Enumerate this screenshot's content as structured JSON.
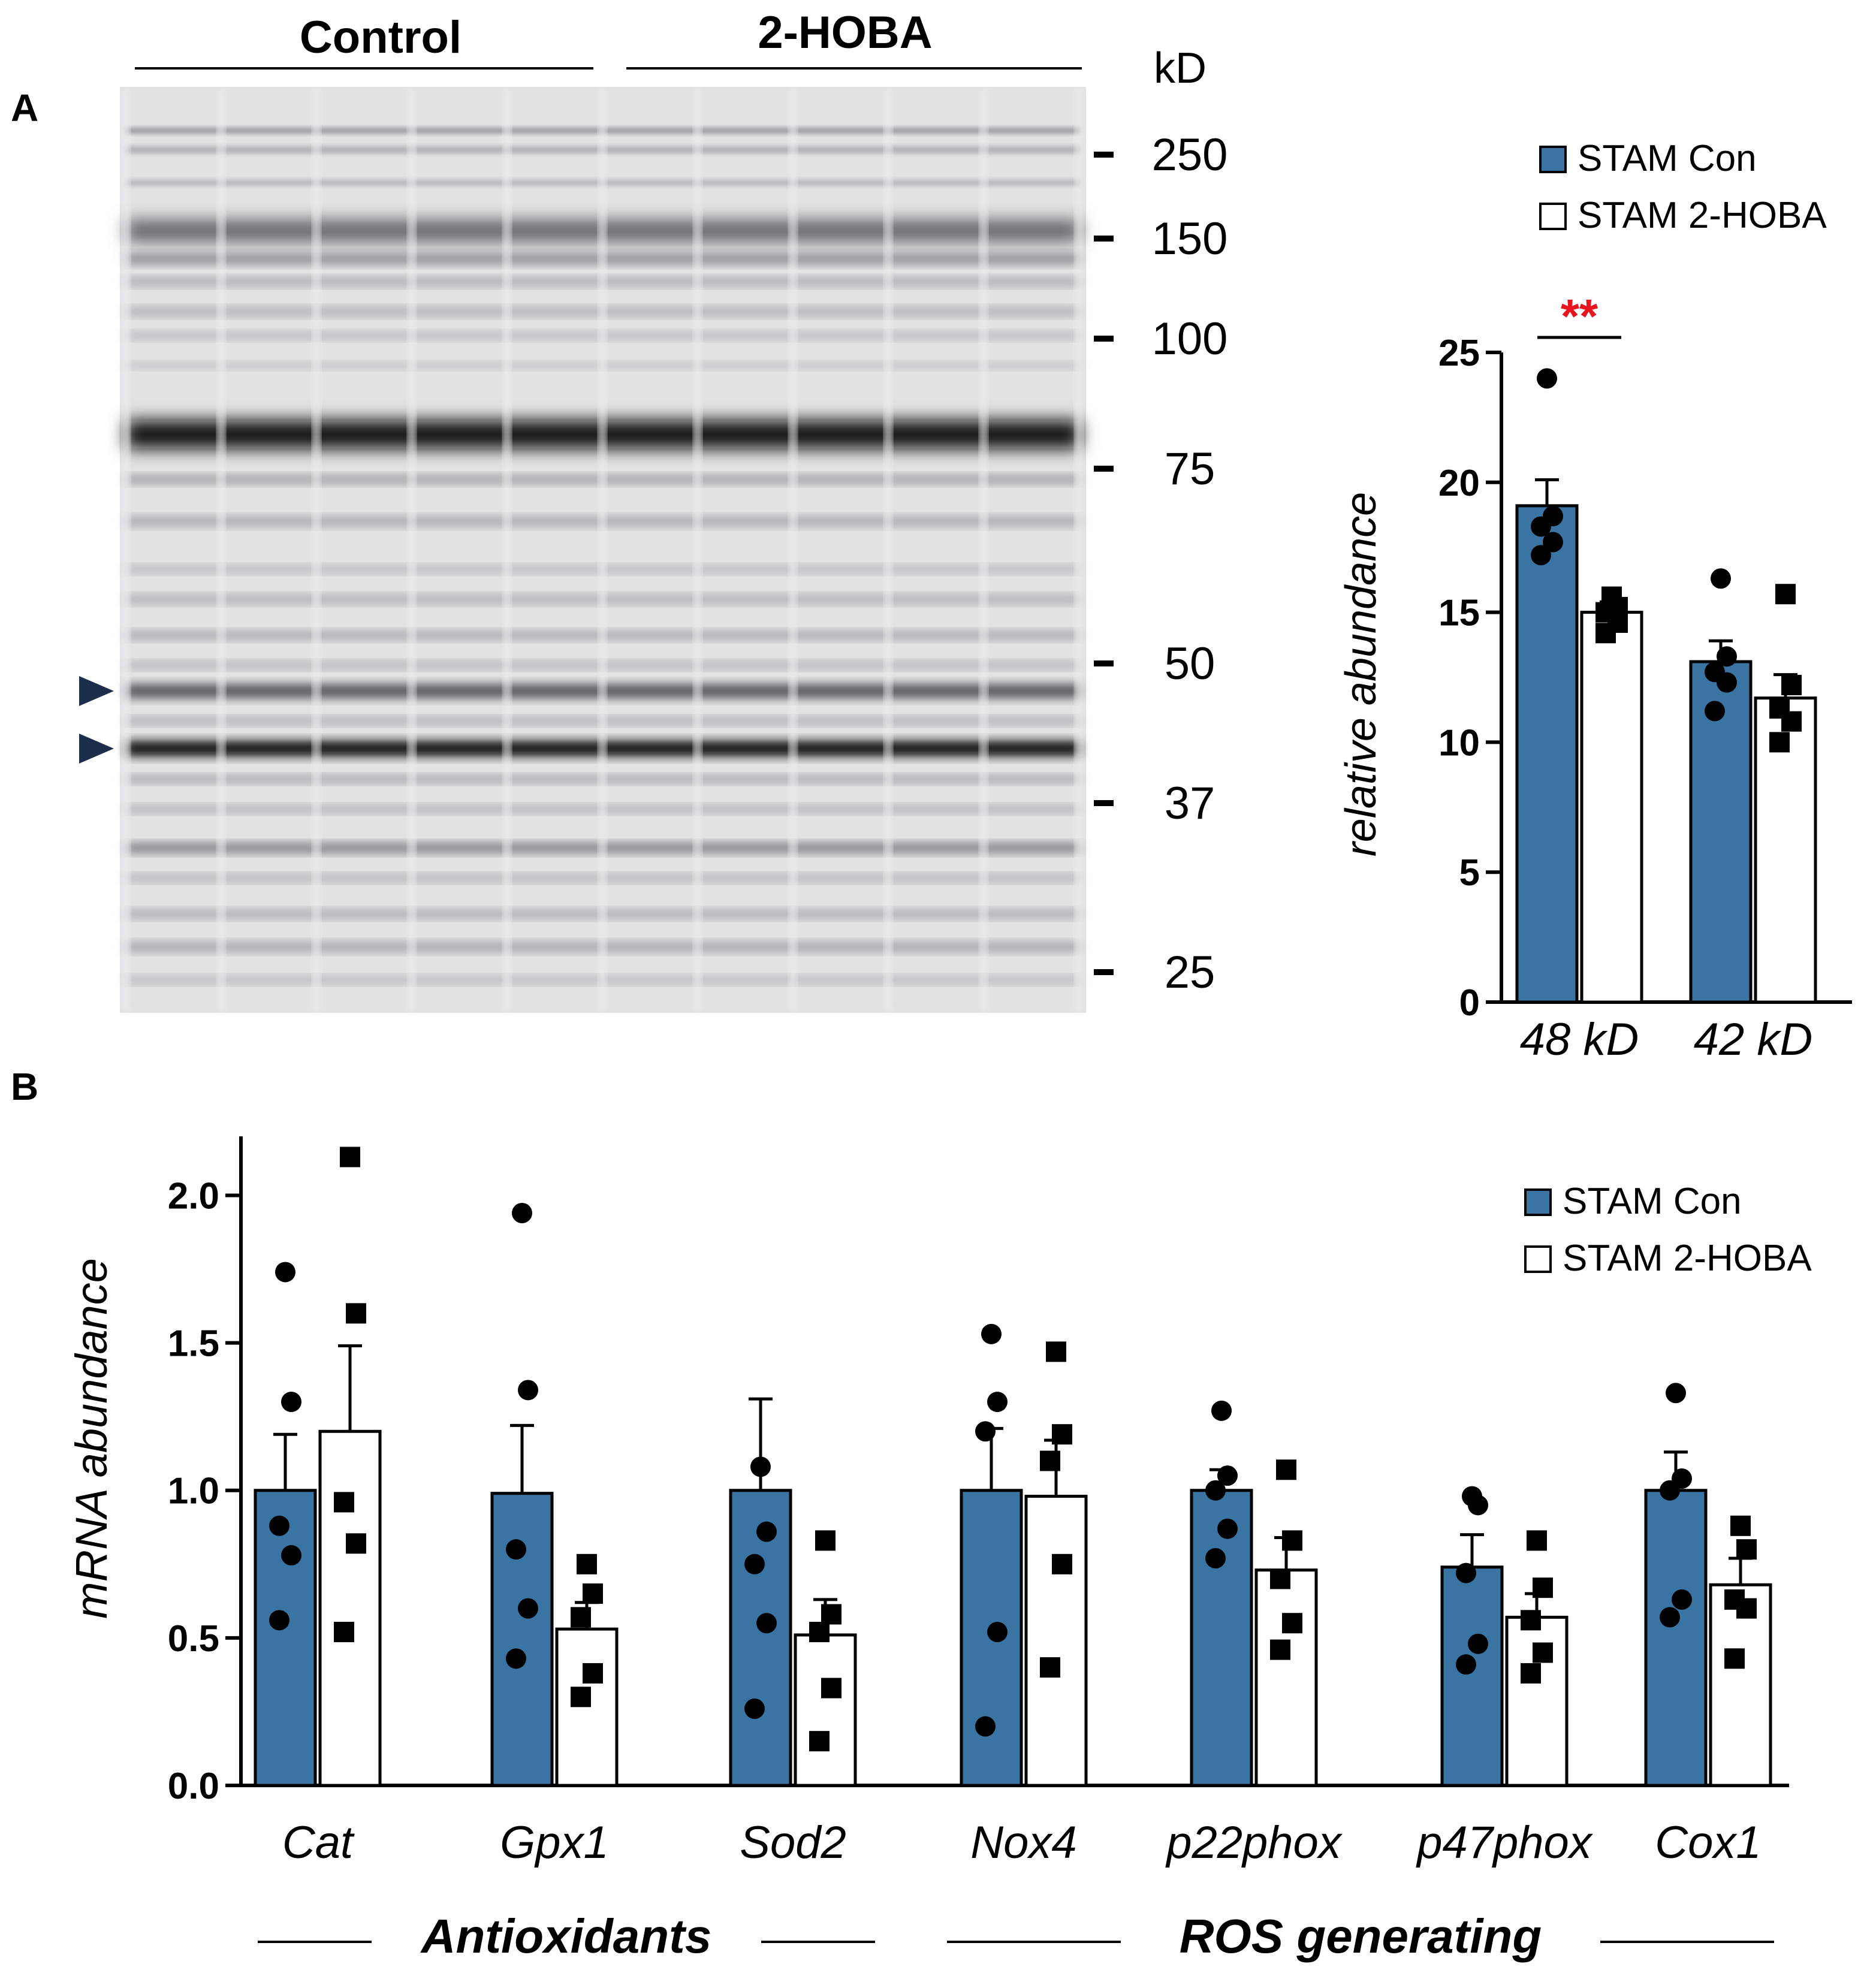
{
  "panel_a": {
    "label": "A",
    "blot": {
      "group_labels": [
        "Control",
        "2-HOBA"
      ],
      "unit_label": "kD",
      "markers": [
        "250",
        "150",
        "100",
        "75",
        "50",
        "37",
        "25"
      ],
      "arrowhead_color": "#1c2e4a"
    }
  },
  "panel_b": {
    "label": "B"
  },
  "colors": {
    "con": "#3a74a3",
    "hoba": "#ffffff",
    "sig": "#e8141e",
    "axis": "#000000"
  },
  "chart_data": [
    {
      "type": "bar",
      "ylabel": "relative abundance",
      "ylim": [
        0,
        25
      ],
      "yticks": [
        "0",
        "5",
        "10",
        "15",
        "20",
        "25"
      ],
      "categories": [
        "48 kD",
        "42 kD"
      ],
      "legend": {
        "position": "top-right",
        "entries": [
          "STAM Con",
          "STAM 2-HOBA"
        ]
      },
      "significance": [
        {
          "category": "48 kD",
          "label": "**"
        }
      ],
      "series": [
        {
          "name": "STAM Con",
          "values": [
            19.1,
            13.1
          ],
          "errors": [
            1.0,
            0.8
          ],
          "points": [
            [
              24.0,
              18.7,
              18.3,
              17.7,
              17.2
            ],
            [
              16.3,
              13.3,
              12.7,
              12.3,
              11.2
            ]
          ]
        },
        {
          "name": "STAM 2-HOBA",
          "values": [
            15.0,
            11.7
          ],
          "errors": [
            0.4,
            0.9
          ],
          "points": [
            [
              15.6,
              15.2,
              15.0,
              14.6,
              14.2
            ],
            [
              15.7,
              12.2,
              11.3,
              10.8,
              10.0
            ]
          ]
        }
      ]
    },
    {
      "type": "bar",
      "ylabel": "mRNA abundance",
      "ylim": [
        0,
        2.2
      ],
      "yticks": [
        "0.0",
        "0.5",
        "1.0",
        "1.5",
        "2.0"
      ],
      "categories": [
        "Cat",
        "Gpx1",
        "Sod2",
        "Nox4",
        "p22phox",
        "p47phox",
        "Cox1"
      ],
      "groups": [
        {
          "label": "Antioxidants",
          "from": 0,
          "to": 2
        },
        {
          "label": "ROS generating",
          "from": 3,
          "to": 6
        }
      ],
      "legend": {
        "position": "top-right",
        "entries": [
          "STAM Con",
          "STAM 2-HOBA"
        ]
      },
      "series": [
        {
          "name": "STAM Con",
          "values": [
            1.0,
            0.99,
            1.0,
            1.0,
            1.0,
            0.74,
            1.0
          ],
          "errors": [
            0.19,
            0.23,
            0.31,
            0.21,
            0.07,
            0.11,
            0.13
          ],
          "points": [
            [
              1.74,
              1.3,
              0.88,
              0.78,
              0.56
            ],
            [
              1.94,
              1.34,
              0.8,
              0.6,
              0.43
            ],
            [
              1.08,
              0.86,
              0.75,
              0.55,
              0.26
            ],
            [
              1.53,
              1.3,
              1.2,
              0.52,
              0.2
            ],
            [
              1.27,
              1.05,
              1.0,
              0.87,
              0.77
            ],
            [
              0.98,
              0.95,
              0.72,
              0.48,
              0.41
            ],
            [
              1.33,
              1.04,
              1.0,
              0.63,
              0.57
            ]
          ]
        },
        {
          "name": "STAM 2-HOBA",
          "values": [
            1.2,
            0.53,
            0.51,
            0.98,
            0.73,
            0.57,
            0.68
          ],
          "errors": [
            0.29,
            0.09,
            0.12,
            0.19,
            0.11,
            0.08,
            0.09
          ],
          "points": [
            [
              2.13,
              1.6,
              0.96,
              0.82,
              0.52
            ],
            [
              0.75,
              0.65,
              0.57,
              0.38,
              0.3
            ],
            [
              0.83,
              0.58,
              0.52,
              0.33,
              0.15
            ],
            [
              1.47,
              1.19,
              1.1,
              0.75,
              0.4
            ],
            [
              1.07,
              0.83,
              0.7,
              0.55,
              0.46
            ],
            [
              0.83,
              0.67,
              0.56,
              0.45,
              0.38
            ],
            [
              0.88,
              0.8,
              0.63,
              0.6,
              0.43
            ]
          ]
        }
      ]
    }
  ]
}
